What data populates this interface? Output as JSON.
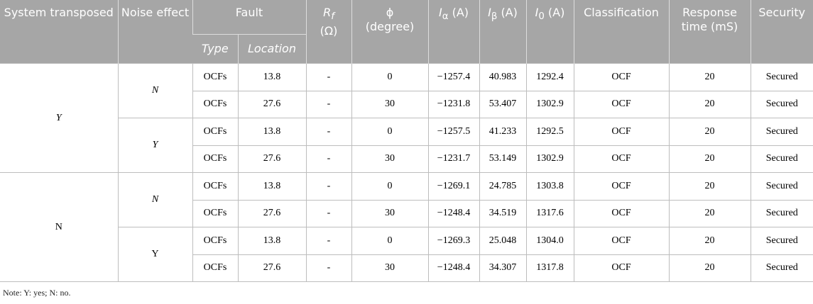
{
  "header": {
    "system": "System transposed",
    "noise": "Noise effect",
    "fault": "Fault",
    "type": "Type",
    "location": "Location",
    "rf": {
      "symbol": "R",
      "sub": "f",
      "unit": "(Ω)"
    },
    "phi": {
      "symbol": "ϕ",
      "unit": "(degree)"
    },
    "ia": {
      "symbol": "I",
      "sub": "α",
      "unit": "(A)"
    },
    "ib": {
      "symbol": "I",
      "sub": "β",
      "unit": "(A)"
    },
    "i0": {
      "symbol": "I",
      "sub": "0",
      "unit": "(A)"
    },
    "classification": "Classification",
    "response": "Response time (mS)",
    "security": "Security"
  },
  "groups": [
    {
      "system": "Y",
      "noise": [
        {
          "value": "N",
          "rows": [
            [
              "OCFs",
              "13.8",
              "-",
              "0",
              "−1257.4",
              "40.983",
              "1292.4",
              "OCF",
              "20",
              "Secured"
            ],
            [
              "OCFs",
              "27.6",
              "-",
              "30",
              "−1231.8",
              "53.407",
              "1302.9",
              "OCF",
              "20",
              "Secured"
            ]
          ]
        },
        {
          "value": "Y",
          "rows": [
            [
              "OCFs",
              "13.8",
              "-",
              "0",
              "−1257.5",
              "41.233",
              "1292.5",
              "OCF",
              "20",
              "Secured"
            ],
            [
              "OCFs",
              "27.6",
              "-",
              "30",
              "−1231.7",
              "53.149",
              "1302.9",
              "OCF",
              "20",
              "Secured"
            ]
          ]
        }
      ]
    },
    {
      "system": "N",
      "noise": [
        {
          "value": "N",
          "rows": [
            [
              "OCFs",
              "13.8",
              "-",
              "0",
              "−1269.1",
              "24.785",
              "1303.8",
              "OCF",
              "20",
              "Secured"
            ],
            [
              "OCFs",
              "27.6",
              "-",
              "30",
              "−1248.4",
              "34.519",
              "1317.6",
              "OCF",
              "20",
              "Secured"
            ]
          ]
        },
        {
          "value": "Y",
          "rows": [
            [
              "OCFs",
              "13.8",
              "-",
              "0",
              "−1269.3",
              "25.048",
              "1304.0",
              "OCF",
              "20",
              "Secured"
            ],
            [
              "OCFs",
              "27.6",
              "-",
              "30",
              "−1248.4",
              "34.307",
              "1317.8",
              "OCF",
              "20",
              "Secured"
            ]
          ]
        }
      ]
    }
  ],
  "note": "Note: Y: yes; N: no."
}
